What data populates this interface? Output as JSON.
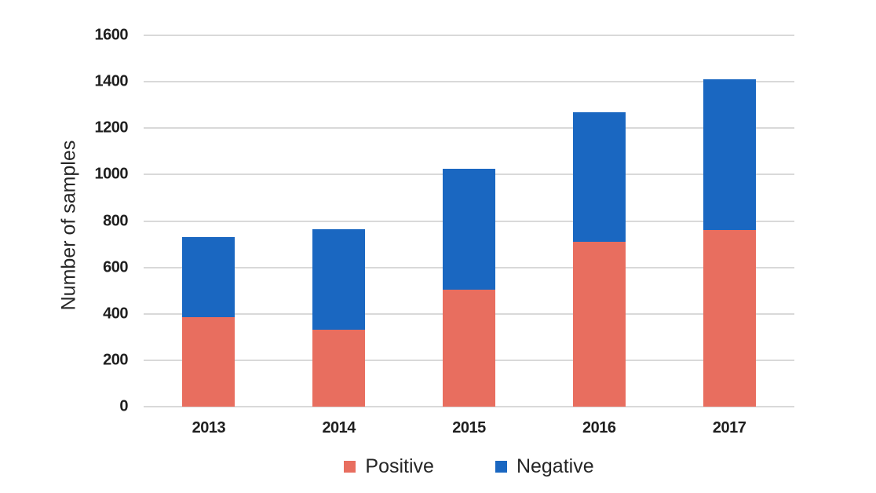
{
  "chart_data": {
    "type": "bar",
    "stacked": true,
    "title": "",
    "xlabel": "",
    "ylabel": "Number of samples",
    "categories": [
      "2013",
      "2014",
      "2015",
      "2016",
      "2017"
    ],
    "series": [
      {
        "name": "Positive",
        "color": "#E86E5F",
        "values": [
          385,
          330,
          505,
          710,
          760
        ]
      },
      {
        "name": "Negative",
        "color": "#1A67C1",
        "values": [
          345,
          435,
          520,
          560,
          650
        ]
      }
    ],
    "totals": [
      730,
      765,
      1025,
      1270,
      1410
    ],
    "ylim": [
      0,
      1600
    ],
    "ytick_step": 200,
    "ytick_labels": [
      "0",
      "200",
      "400",
      "600",
      "800",
      "1000",
      "1200",
      "1400",
      "1600"
    ],
    "grid": "horizontal",
    "gridline_color": "#D9D9D9",
    "legend_position": "bottom"
  }
}
